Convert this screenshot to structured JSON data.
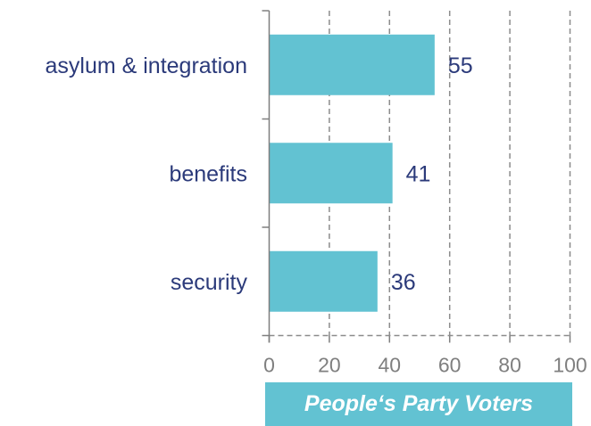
{
  "chart_data": {
    "type": "bar",
    "orientation": "horizontal",
    "categories": [
      "asylum & integration",
      "benefits",
      "security"
    ],
    "values": [
      55,
      41,
      36
    ],
    "title": "People‘s Party Voters",
    "xlim": [
      0,
      100
    ],
    "xticks": [
      "0",
      "20",
      "40",
      "60",
      "80",
      "100"
    ],
    "grid": "vertical dashed",
    "legend": "none",
    "colors": {
      "bar": "#62c2d2",
      "title_band": "#62c2d2",
      "category_text": "#2b3a7a",
      "value_text": "#2b3a7a",
      "tick_text": "#7f7f7f",
      "axis": "#7f7f7f",
      "grid": "#8c8c8c"
    }
  }
}
